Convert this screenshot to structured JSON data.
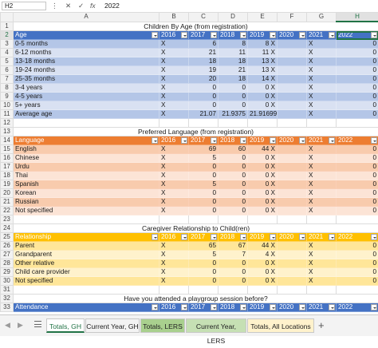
{
  "formula_bar": {
    "cell_ref": "H2",
    "cancel_icon": "✕",
    "enter_icon": "✓",
    "fx_label": "fx",
    "value": "2022"
  },
  "columns": [
    "A",
    "B",
    "C",
    "D",
    "E",
    "F",
    "G",
    "H"
  ],
  "selected_column": "H",
  "rows": [
    {
      "n": "1",
      "kind": "title",
      "cells": [
        "Children By Age (from registration)"
      ]
    },
    {
      "n": "2",
      "kind": "hdr-blue",
      "cells": [
        "Age",
        "2016",
        "2017",
        "2018",
        "2019",
        "2020",
        "2021",
        "2022"
      ],
      "selected": true
    },
    {
      "n": "3",
      "kind": "blue-dark",
      "cells": [
        "0-5 months",
        "X",
        "6",
        "8",
        "8 X",
        "X",
        "0"
      ]
    },
    {
      "n": "4",
      "kind": "blue-light",
      "cells": [
        "6-12 months",
        "X",
        "21",
        "11",
        "11 X",
        "X",
        "0"
      ]
    },
    {
      "n": "5",
      "kind": "blue-dark",
      "cells": [
        "13-18 months",
        "X",
        "18",
        "18",
        "13 X",
        "X",
        "0"
      ]
    },
    {
      "n": "6",
      "kind": "blue-light",
      "cells": [
        "19-24 months",
        "X",
        "19",
        "21",
        "13 X",
        "X",
        "0"
      ]
    },
    {
      "n": "7",
      "kind": "blue-dark",
      "cells": [
        "25-35 months",
        "X",
        "20",
        "18",
        "14 X",
        "X",
        "0"
      ]
    },
    {
      "n": "8",
      "kind": "blue-light",
      "cells": [
        "3-4 years",
        "X",
        "0",
        "0",
        "0 X",
        "X",
        "0"
      ]
    },
    {
      "n": "9",
      "kind": "blue-dark",
      "cells": [
        "4-5 years",
        "X",
        "0",
        "0",
        "0 X",
        "X",
        "0"
      ]
    },
    {
      "n": "10",
      "kind": "blue-light",
      "cells": [
        "5+ years",
        "X",
        "0",
        "0",
        "0 X",
        "X",
        "0"
      ]
    },
    {
      "n": "11",
      "kind": "blue-dark",
      "cells": [
        "Average age",
        "X",
        "21.07",
        "21.9375",
        "21.91699 X",
        "X",
        "0"
      ]
    },
    {
      "n": "12",
      "kind": "blank",
      "cells": []
    },
    {
      "n": "13",
      "kind": "title",
      "cells": [
        "Preferred Language (from registration)"
      ]
    },
    {
      "n": "14",
      "kind": "hdr-orange",
      "cells": [
        "Language",
        "2016",
        "2017",
        "2018",
        "2019",
        "2020",
        "2021",
        "2022"
      ]
    },
    {
      "n": "15",
      "kind": "orange-dark",
      "cells": [
        "English",
        "X",
        "69",
        "60",
        "44 X",
        "X",
        "0"
      ]
    },
    {
      "n": "16",
      "kind": "orange-light",
      "cells": [
        "Chinese",
        "X",
        "5",
        "0",
        "0 X",
        "X",
        "0"
      ]
    },
    {
      "n": "17",
      "kind": "orange-dark",
      "cells": [
        "Urdu",
        "X",
        "0",
        "0",
        "0 X",
        "X",
        "0"
      ]
    },
    {
      "n": "18",
      "kind": "orange-light",
      "cells": [
        "Thai",
        "X",
        "0",
        "0",
        "0 X",
        "X",
        "0"
      ]
    },
    {
      "n": "19",
      "kind": "orange-dark",
      "cells": [
        "Spanish",
        "X",
        "5",
        "0",
        "0 X",
        "X",
        "0"
      ]
    },
    {
      "n": "20",
      "kind": "orange-light",
      "cells": [
        "Korean",
        "X",
        "0",
        "0",
        "0 X",
        "X",
        "0"
      ]
    },
    {
      "n": "21",
      "kind": "orange-dark",
      "cells": [
        "Russian",
        "X",
        "0",
        "0",
        "0 X",
        "X",
        "0"
      ]
    },
    {
      "n": "22",
      "kind": "orange-light",
      "cells": [
        "Not specified",
        "X",
        "0",
        "0",
        "0 X",
        "X",
        "0"
      ]
    },
    {
      "n": "23",
      "kind": "blank",
      "cells": []
    },
    {
      "n": "24",
      "kind": "title",
      "cells": [
        "Caregiver Relationship to Child(ren)"
      ]
    },
    {
      "n": "25",
      "kind": "hdr-gold",
      "cells": [
        "Relationship",
        "2016",
        "2017",
        "2018",
        "2019",
        "2020",
        "2021",
        "2022"
      ]
    },
    {
      "n": "26",
      "kind": "gold-dark",
      "cells": [
        "Parent",
        "X",
        "65",
        "67",
        "44 X",
        "X",
        "0"
      ]
    },
    {
      "n": "27",
      "kind": "gold-light",
      "cells": [
        "Grandparent",
        "X",
        "5",
        "7",
        "4 X",
        "X",
        "0"
      ]
    },
    {
      "n": "28",
      "kind": "gold-dark",
      "cells": [
        "Other relative",
        "X",
        "0",
        "0",
        "0 X",
        "X",
        "0"
      ]
    },
    {
      "n": "29",
      "kind": "gold-light",
      "cells": [
        "Child care provider",
        "X",
        "0",
        "0",
        "0 X",
        "X",
        "0"
      ]
    },
    {
      "n": "30",
      "kind": "gold-dark",
      "cells": [
        "Not specified",
        "X",
        "0",
        "0",
        "0 X",
        "X",
        "0"
      ]
    },
    {
      "n": "31",
      "kind": "blank",
      "cells": []
    },
    {
      "n": "32",
      "kind": "title",
      "cells": [
        "Have you attended a playgroup session before?"
      ]
    },
    {
      "n": "33",
      "kind": "hdr-blue",
      "cells": [
        "Attendance",
        "2016",
        "2017",
        "2018",
        "2019",
        "2020",
        "2021",
        "2022"
      ]
    }
  ],
  "sheet_tabs": [
    "Totals, GH",
    "Current Year, GH",
    "Totals, LERS",
    "Current Year, LERS",
    "Totals, All Locations"
  ],
  "active_tab": "Totals, GH",
  "tab_colors": {
    "current_year_gh": "#f3f3f3",
    "totals_lers": "#a9d08e",
    "current_year_lers": "#c6e0b4",
    "totals_all": "#fff2cc"
  },
  "add_sheet_icon": "+",
  "nav_prev_icon": "◀",
  "nav_next_icon": "▶"
}
